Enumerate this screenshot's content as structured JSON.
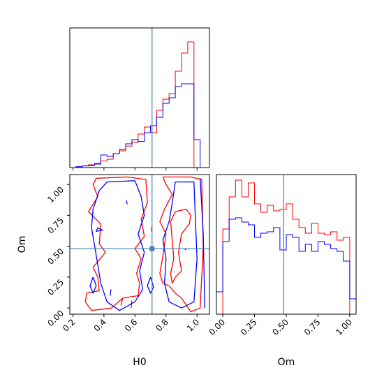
{
  "chart_data": {
    "type": "corner",
    "parameters": [
      "H0",
      "Om"
    ],
    "truth": {
      "H0": 0.71,
      "Om": 0.48
    },
    "colors": {
      "red": "#ff0000",
      "blue": "#0000ff",
      "truth": "#4682b4"
    },
    "panels": [
      {
        "id": "hist-H0",
        "type": "histogram",
        "xlim": [
          0.18,
          1.08
        ],
        "ylim": [
          0,
          1.0
        ],
        "x_ticks": [
          0.2,
          0.4,
          0.6,
          0.8,
          1.0
        ],
        "bin_edges": [
          0.18,
          0.22,
          0.26,
          0.3,
          0.34,
          0.38,
          0.42,
          0.46,
          0.5,
          0.54,
          0.58,
          0.62,
          0.66,
          0.7,
          0.74,
          0.78,
          0.82,
          0.86,
          0.9,
          0.94,
          0.98,
          1.02
        ],
        "series": [
          {
            "color": "red",
            "values": [
              0.0,
              0.006,
              0.012,
              0.02,
              0.03,
              0.047,
              0.06,
              0.1,
              0.12,
              0.154,
              0.18,
              0.24,
              0.29,
              0.25,
              0.41,
              0.49,
              0.53,
              0.69,
              0.82,
              0.9,
              0.0
            ]
          },
          {
            "color": "blue",
            "values": [
              0.0,
              0.006,
              0.012,
              0.015,
              0.025,
              0.09,
              0.08,
              0.1,
              0.13,
              0.17,
              0.2,
              0.187,
              0.25,
              0.3,
              0.36,
              0.46,
              0.5,
              0.58,
              0.6,
              0.6,
              0.2
            ]
          }
        ]
      },
      {
        "id": "contour-H0-Om",
        "type": "contour",
        "xlim": [
          0.18,
          1.08
        ],
        "ylim": [
          -0.05,
          1.08
        ],
        "x_ticks": [
          0.2,
          0.4,
          0.6,
          0.8,
          1.0
        ],
        "y_ticks": [
          0.0,
          0.25,
          0.5,
          0.75,
          1.0
        ],
        "y_tick_labels": [
          "0.00",
          "0.25",
          "0.50",
          "0.75",
          "1.00"
        ],
        "xlabel": "H0",
        "ylabel": "Om",
        "series": [
          {
            "color": "red",
            "paths": [
              [
                [
                  0.35,
                  1.05
                ],
                [
                  0.55,
                  1.06
                ],
                [
                  0.67,
                  1.04
                ],
                [
                  0.68,
                  0.85
                ],
                [
                  0.64,
                  0.72
                ],
                [
                  0.66,
                  0.58
                ],
                [
                  0.6,
                  0.48
                ],
                [
                  0.64,
                  0.4
                ],
                [
                  0.61,
                  0.28
                ],
                [
                  0.63,
                  0.2
                ],
                [
                  0.62,
                  0.1
                ],
                [
                  0.52,
                  0.08
                ],
                [
                  0.45,
                  0.0
                ],
                [
                  0.32,
                  -0.02
                ],
                [
                  0.28,
                  0.05
                ],
                [
                  0.29,
                  0.12
                ],
                [
                  0.37,
                  0.14
                ],
                [
                  0.36,
                  0.25
                ],
                [
                  0.33,
                  0.33
                ],
                [
                  0.41,
                  0.45
                ],
                [
                  0.37,
                  0.52
                ],
                [
                  0.38,
                  0.68
                ],
                [
                  0.3,
                  0.78
                ],
                [
                  0.36,
                  0.9
                ],
                [
                  0.33,
                  1.0
                ],
                [
                  0.35,
                  1.05
                ]
              ],
              [
                [
                  0.78,
                  1.06
                ],
                [
                  0.96,
                  1.06
                ],
                [
                  1.03,
                  1.04
                ],
                [
                  1.04,
                  0.5
                ],
                [
                  1.02,
                  0.0
                ],
                [
                  0.96,
                  -0.03
                ],
                [
                  0.9,
                  0.08
                ],
                [
                  0.86,
                  0.12
                ],
                [
                  0.82,
                  0.18
                ],
                [
                  0.78,
                  0.2
                ],
                [
                  0.76,
                  0.28
                ],
                [
                  0.78,
                  0.42
                ],
                [
                  0.8,
                  0.6
                ],
                [
                  0.76,
                  0.7
                ],
                [
                  0.79,
                  0.8
                ],
                [
                  0.84,
                  0.92
                ],
                [
                  0.8,
                  1.0
                ],
                [
                  0.78,
                  1.06
                ]
              ],
              [
                [
                  0.86,
                  0.78
                ],
                [
                  0.93,
                  0.8
                ],
                [
                  0.96,
                  0.75
                ],
                [
                  0.95,
                  0.68
                ],
                [
                  0.9,
                  0.6
                ],
                [
                  0.88,
                  0.45
                ],
                [
                  0.9,
                  0.3
                ],
                [
                  0.86,
                  0.25
                ],
                [
                  0.84,
                  0.2
                ],
                [
                  0.83,
                  0.28
                ],
                [
                  0.85,
                  0.4
                ],
                [
                  0.84,
                  0.55
                ],
                [
                  0.83,
                  0.7
                ],
                [
                  0.86,
                  0.78
                ]
              ],
              [
                [
                  0.51,
                  0.02
                ],
                [
                  0.52,
                  0.08
                ]
              ],
              [
                [
                  0.575,
                  0.0
                ],
                [
                  0.58,
                  0.06
                ]
              ],
              [
                [
                  0.705,
                  0.62
                ],
                [
                  0.71,
                  0.67
                ]
              ]
            ]
          },
          {
            "color": "blue",
            "paths": [
              [
                [
                  0.42,
                  1.02
                ],
                [
                  0.6,
                  1.03
                ],
                [
                  0.64,
                  0.9
                ],
                [
                  0.66,
                  0.75
                ],
                [
                  0.62,
                  0.6
                ],
                [
                  0.66,
                  0.45
                ],
                [
                  0.63,
                  0.3
                ],
                [
                  0.65,
                  0.15
                ],
                [
                  0.6,
                  0.05
                ],
                [
                  0.5,
                  -0.02
                ],
                [
                  0.42,
                  0.05
                ],
                [
                  0.38,
                  0.2
                ],
                [
                  0.36,
                  0.35
                ],
                [
                  0.34,
                  0.5
                ],
                [
                  0.32,
                  0.65
                ],
                [
                  0.33,
                  0.8
                ],
                [
                  0.37,
                  0.95
                ],
                [
                  0.42,
                  1.02
                ]
              ],
              [
                [
                  0.86,
                  1.02
                ],
                [
                  0.98,
                  1.02
                ],
                [
                  0.99,
                  0.7
                ],
                [
                  1.0,
                  0.4
                ],
                [
                  0.98,
                  0.05
                ],
                [
                  0.9,
                  0.0
                ],
                [
                  0.82,
                  0.05
                ],
                [
                  0.79,
                  0.2
                ],
                [
                  0.8,
                  0.4
                ],
                [
                  0.78,
                  0.55
                ],
                [
                  0.82,
                  0.7
                ],
                [
                  0.84,
                  0.85
                ],
                [
                  0.86,
                  1.02
                ]
              ],
              [
                [
                  1.02,
                  1.05
                ],
                [
                  1.04,
                  0.6
                ],
                [
                  1.05,
                  0.0
                ]
              ],
              [
                [
                  0.33,
                  0.25
                ],
                [
                  0.35,
                  0.18
                ],
                [
                  0.33,
                  0.12
                ],
                [
                  0.31,
                  0.18
                ],
                [
                  0.33,
                  0.25
                ]
              ],
              [
                [
                  0.7,
                  0.25
                ],
                [
                  0.72,
                  0.17
                ],
                [
                  0.7,
                  0.12
                ],
                [
                  0.68,
                  0.18
                ],
                [
                  0.7,
                  0.25
                ]
              ],
              [
                [
                  0.36,
                  0.65
                ],
                [
                  0.39,
                  0.63
                ],
                [
                  0.35,
                  0.62
                ],
                [
                  0.36,
                  0.65
                ]
              ],
              [
                [
                  0.545,
                  0.87
                ],
                [
                  0.55,
                  0.84
                ]
              ],
              [
                [
                  0.44,
                  0.1
                ],
                [
                  0.445,
                  0.15
                ]
              ],
              [
                [
                  0.92,
                  0.48
                ],
                [
                  0.93,
                  0.47
                ]
              ]
            ]
          }
        ]
      },
      {
        "id": "hist-Om",
        "type": "histogram",
        "xlim": [
          -0.05,
          1.05
        ],
        "ylim": [
          0,
          1.0
        ],
        "x_ticks": [
          0.0,
          0.25,
          0.5,
          0.75,
          1.0
        ],
        "x_tick_labels": [
          "0.00",
          "0.25",
          "0.50",
          "0.75",
          "1.00"
        ],
        "xlabel": "Om",
        "bin_edges": [
          -0.05,
          0.0,
          0.05,
          0.1,
          0.15,
          0.2,
          0.25,
          0.3,
          0.35,
          0.4,
          0.45,
          0.5,
          0.55,
          0.6,
          0.65,
          0.7,
          0.75,
          0.8,
          0.85,
          0.9,
          0.95,
          1.0,
          1.05
        ],
        "series": [
          {
            "color": "red",
            "values": [
              0.0,
              0.61,
              0.84,
              0.96,
              0.84,
              0.94,
              0.79,
              0.73,
              0.78,
              0.74,
              0.75,
              0.79,
              0.68,
              0.62,
              0.58,
              0.65,
              0.58,
              0.57,
              0.59,
              0.53,
              0.55,
              0.0
            ]
          },
          {
            "color": "blue",
            "values": [
              0.16,
              0.52,
              0.68,
              0.69,
              0.66,
              0.64,
              0.55,
              0.58,
              0.59,
              0.62,
              0.46,
              0.57,
              0.55,
              0.45,
              0.5,
              0.45,
              0.52,
              0.5,
              0.47,
              0.45,
              0.38,
              0.11
            ]
          }
        ]
      }
    ]
  }
}
